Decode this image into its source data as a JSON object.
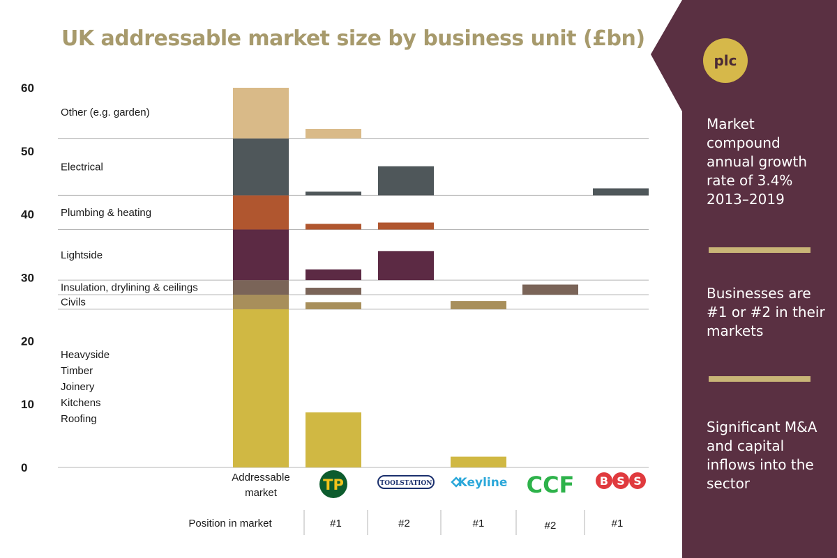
{
  "header": {
    "title": "UK addressable market size by business unit (£bn)"
  },
  "sidebar": {
    "badge": "plc",
    "points": [
      "Market compound annual growth rate of 3.4% 2013–2019",
      "Businesses are #1 or #2 in their markets",
      "Significant M&A and capital inflows into the sector"
    ],
    "colors": {
      "background": "#5a3042",
      "rule": "#c9b577",
      "badge": "#d6b84a"
    }
  },
  "chart_data": {
    "type": "bar",
    "title": "UK addressable market size by business unit (£bn)",
    "ylim": [
      0,
      60
    ],
    "yticks": [
      0,
      10,
      20,
      30,
      40,
      50,
      60
    ],
    "categories": [
      {
        "id": "heavyside",
        "label": [
          "Heavyside",
          "Timber",
          "Joinery",
          "Kitchens",
          "Roofing"
        ],
        "range": [
          0,
          25
        ],
        "color": "#d0b843"
      },
      {
        "id": "civils",
        "label": [
          "Civils"
        ],
        "range": [
          25,
          27.3
        ],
        "color": "#a88f5b"
      },
      {
        "id": "insulation",
        "label": [
          "Insulation, drylining & ceilings"
        ],
        "range": [
          27.3,
          29.6
        ],
        "color": "#7a6458"
      },
      {
        "id": "lightside",
        "label": [
          "Lightside"
        ],
        "range": [
          29.6,
          37.6
        ],
        "color": "#5c2a44"
      },
      {
        "id": "plumbing",
        "label": [
          "Plumbing & heating"
        ],
        "range": [
          37.6,
          43
        ],
        "color": "#b0562f"
      },
      {
        "id": "electrical",
        "label": [
          "Electrical"
        ],
        "range": [
          43,
          52
        ],
        "color": "#4f575a"
      },
      {
        "id": "other",
        "label": [
          "Other (e.g. garden)"
        ],
        "range": [
          52,
          60
        ],
        "color": "#d9ba88"
      }
    ],
    "bars": [
      {
        "id": "addressable-market",
        "label": [
          "Addressable",
          "market"
        ],
        "position": "",
        "segments": [
          {
            "category": "heavyside",
            "bottom": 0,
            "top": 25
          },
          {
            "category": "civils",
            "bottom": 25,
            "top": 27.3
          },
          {
            "category": "insulation",
            "bottom": 27.3,
            "top": 29.6
          },
          {
            "category": "lightside",
            "bottom": 29.6,
            "top": 37.6
          },
          {
            "category": "plumbing",
            "bottom": 37.6,
            "top": 43
          },
          {
            "category": "electrical",
            "bottom": 43,
            "top": 52
          },
          {
            "category": "other",
            "bottom": 52,
            "top": 60
          }
        ]
      },
      {
        "id": "travis-perkins",
        "logo": "TP",
        "position": "#1",
        "segments": [
          {
            "category": "heavyside",
            "bottom": 0,
            "top": 8.7
          },
          {
            "category": "civils",
            "bottom": 25,
            "top": 26.1
          },
          {
            "category": "insulation",
            "bottom": 27.3,
            "top": 28.4
          },
          {
            "category": "lightside",
            "bottom": 29.6,
            "top": 31.3
          },
          {
            "category": "plumbing",
            "bottom": 37.6,
            "top": 38.5
          },
          {
            "category": "electrical",
            "bottom": 43,
            "top": 43.6
          },
          {
            "category": "other",
            "bottom": 52,
            "top": 53.5
          }
        ]
      },
      {
        "id": "toolstation",
        "logo": "TOOLSTATION",
        "position": "#2",
        "segments": [
          {
            "category": "lightside",
            "bottom": 29.6,
            "top": 34.2
          },
          {
            "category": "plumbing",
            "bottom": 37.6,
            "top": 38.7
          },
          {
            "category": "electrical",
            "bottom": 43,
            "top": 47.6
          }
        ]
      },
      {
        "id": "keyline",
        "logo": "Keyline",
        "position": "#1",
        "segments": [
          {
            "category": "heavyside",
            "bottom": 0,
            "top": 1.7
          },
          {
            "category": "civils",
            "bottom": 25,
            "top": 26.3
          }
        ]
      },
      {
        "id": "ccf",
        "logo": "CCF",
        "position": "#2",
        "segments": [
          {
            "category": "insulation",
            "bottom": 27.3,
            "top": 28.9
          }
        ]
      },
      {
        "id": "bss",
        "logo": "BSS",
        "position": "#1",
        "segments": [
          {
            "category": "electrical",
            "bottom": 43,
            "top": 44.1
          }
        ]
      }
    ],
    "position_row_label": "Position in market"
  }
}
